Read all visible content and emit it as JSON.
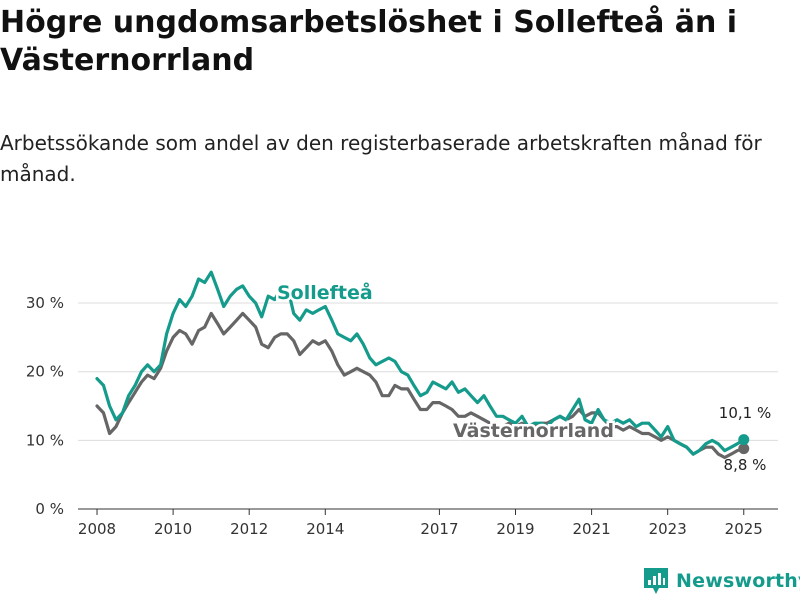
{
  "title": "Högre ungdomsarbetslöshet i Sollefteå än i Västernorrland",
  "subtitle": "Arbetssökande som andel av den registerbaserade arbetskraften månad för månad.",
  "brand": {
    "name": "Newsworthy",
    "icon": "bar-chart-logo-icon",
    "color": "#159b8c"
  },
  "chart_data": {
    "type": "line",
    "title": "Högre ungdomsarbetslöshet i Sollefteå än i Västernorrland",
    "subtitle": "Arbetssökande som andel av den registerbaserade arbetskraften månad för månad.",
    "x_axis": {
      "ticks": [
        "2008",
        "2010",
        "2012",
        "2014",
        "2017",
        "2019",
        "2021",
        "2023",
        "2025"
      ],
      "range": [
        2007.5,
        2025.9
      ]
    },
    "y_axis": {
      "ticks": [
        "0 %",
        "10 %",
        "20 %",
        "30 %"
      ],
      "range": [
        0,
        37
      ]
    },
    "grid": true,
    "series": [
      {
        "name": "Sollefteå",
        "color": "#159b8c",
        "end_label": "10,1 %",
        "points": [
          [
            2008.0,
            19.0
          ],
          [
            2008.17,
            18.0
          ],
          [
            2008.33,
            15.0
          ],
          [
            2008.5,
            13.0
          ],
          [
            2008.67,
            14.0
          ],
          [
            2008.83,
            16.5
          ],
          [
            2009.0,
            18.0
          ],
          [
            2009.17,
            20.0
          ],
          [
            2009.33,
            21.0
          ],
          [
            2009.5,
            20.0
          ],
          [
            2009.67,
            21.0
          ],
          [
            2009.83,
            25.5
          ],
          [
            2010.0,
            28.5
          ],
          [
            2010.17,
            30.5
          ],
          [
            2010.33,
            29.5
          ],
          [
            2010.5,
            31.0
          ],
          [
            2010.67,
            33.5
          ],
          [
            2010.83,
            33.0
          ],
          [
            2011.0,
            34.5
          ],
          [
            2011.17,
            32.0
          ],
          [
            2011.33,
            29.5
          ],
          [
            2011.5,
            31.0
          ],
          [
            2011.67,
            32.0
          ],
          [
            2011.83,
            32.5
          ],
          [
            2012.0,
            31.0
          ],
          [
            2012.17,
            30.0
          ],
          [
            2012.33,
            28.0
          ],
          [
            2012.5,
            31.0
          ],
          [
            2012.67,
            30.5
          ],
          [
            2012.83,
            32.0
          ],
          [
            2013.0,
            32.5
          ],
          [
            2013.17,
            28.5
          ],
          [
            2013.33,
            27.5
          ],
          [
            2013.5,
            29.0
          ],
          [
            2013.67,
            28.5
          ],
          [
            2013.83,
            29.0
          ],
          [
            2014.0,
            29.5
          ],
          [
            2014.17,
            27.5
          ],
          [
            2014.33,
            25.5
          ],
          [
            2014.5,
            25.0
          ],
          [
            2014.67,
            24.5
          ],
          [
            2014.83,
            25.5
          ],
          [
            2015.0,
            24.0
          ],
          [
            2015.17,
            22.0
          ],
          [
            2015.33,
            21.0
          ],
          [
            2015.5,
            21.5
          ],
          [
            2015.67,
            22.0
          ],
          [
            2015.83,
            21.5
          ],
          [
            2016.0,
            20.0
          ],
          [
            2016.17,
            19.5
          ],
          [
            2016.33,
            18.0
          ],
          [
            2016.5,
            16.5
          ],
          [
            2016.67,
            17.0
          ],
          [
            2016.83,
            18.5
          ],
          [
            2017.0,
            18.0
          ],
          [
            2017.17,
            17.5
          ],
          [
            2017.33,
            18.5
          ],
          [
            2017.5,
            17.0
          ],
          [
            2017.67,
            17.5
          ],
          [
            2017.83,
            16.5
          ],
          [
            2018.0,
            15.5
          ],
          [
            2018.17,
            16.5
          ],
          [
            2018.33,
            15.0
          ],
          [
            2018.5,
            13.5
          ],
          [
            2018.67,
            13.5
          ],
          [
            2018.83,
            13.0
          ],
          [
            2019.0,
            12.5
          ],
          [
            2019.17,
            13.5
          ],
          [
            2019.33,
            12.0
          ],
          [
            2019.5,
            12.5
          ],
          [
            2019.67,
            12.5
          ],
          [
            2019.83,
            12.0
          ],
          [
            2020.0,
            13.0
          ],
          [
            2020.17,
            13.5
          ],
          [
            2020.33,
            13.0
          ],
          [
            2020.5,
            14.5
          ],
          [
            2020.67,
            16.0
          ],
          [
            2020.83,
            13.0
          ],
          [
            2021.0,
            12.5
          ],
          [
            2021.17,
            14.5
          ],
          [
            2021.33,
            13.0
          ],
          [
            2021.5,
            12.5
          ],
          [
            2021.67,
            13.0
          ],
          [
            2021.83,
            12.5
          ],
          [
            2022.0,
            13.0
          ],
          [
            2022.17,
            12.0
          ],
          [
            2022.33,
            12.5
          ],
          [
            2022.5,
            12.5
          ],
          [
            2022.67,
            11.5
          ],
          [
            2022.83,
            10.5
          ],
          [
            2023.0,
            12.0
          ],
          [
            2023.17,
            10.0
          ],
          [
            2023.33,
            9.5
          ],
          [
            2023.5,
            9.0
          ],
          [
            2023.67,
            8.0
          ],
          [
            2023.83,
            8.5
          ],
          [
            2024.0,
            9.5
          ],
          [
            2024.17,
            10.0
          ],
          [
            2024.33,
            9.5
          ],
          [
            2024.5,
            8.5
          ],
          [
            2024.67,
            9.0
          ],
          [
            2024.83,
            9.5
          ],
          [
            2025.0,
            10.1
          ]
        ]
      },
      {
        "name": "Västernorrland",
        "color": "#666666",
        "end_label": "8,8 %",
        "points": [
          [
            2008.0,
            15.0
          ],
          [
            2008.17,
            14.0
          ],
          [
            2008.33,
            11.0
          ],
          [
            2008.5,
            12.0
          ],
          [
            2008.67,
            14.0
          ],
          [
            2008.83,
            15.5
          ],
          [
            2009.0,
            17.0
          ],
          [
            2009.17,
            18.5
          ],
          [
            2009.33,
            19.5
          ],
          [
            2009.5,
            19.0
          ],
          [
            2009.67,
            20.5
          ],
          [
            2009.83,
            23.0
          ],
          [
            2010.0,
            25.0
          ],
          [
            2010.17,
            26.0
          ],
          [
            2010.33,
            25.5
          ],
          [
            2010.5,
            24.0
          ],
          [
            2010.67,
            26.0
          ],
          [
            2010.83,
            26.5
          ],
          [
            2011.0,
            28.5
          ],
          [
            2011.17,
            27.0
          ],
          [
            2011.33,
            25.5
          ],
          [
            2011.5,
            26.5
          ],
          [
            2011.67,
            27.5
          ],
          [
            2011.83,
            28.5
          ],
          [
            2012.0,
            27.5
          ],
          [
            2012.17,
            26.5
          ],
          [
            2012.33,
            24.0
          ],
          [
            2012.5,
            23.5
          ],
          [
            2012.67,
            25.0
          ],
          [
            2012.83,
            25.5
          ],
          [
            2013.0,
            25.5
          ],
          [
            2013.17,
            24.5
          ],
          [
            2013.33,
            22.5
          ],
          [
            2013.5,
            23.5
          ],
          [
            2013.67,
            24.5
          ],
          [
            2013.83,
            24.0
          ],
          [
            2014.0,
            24.5
          ],
          [
            2014.17,
            23.0
          ],
          [
            2014.33,
            21.0
          ],
          [
            2014.5,
            19.5
          ],
          [
            2014.67,
            20.0
          ],
          [
            2014.83,
            20.5
          ],
          [
            2015.0,
            20.0
          ],
          [
            2015.17,
            19.5
          ],
          [
            2015.33,
            18.5
          ],
          [
            2015.5,
            16.5
          ],
          [
            2015.67,
            16.5
          ],
          [
            2015.83,
            18.0
          ],
          [
            2016.0,
            17.5
          ],
          [
            2016.17,
            17.5
          ],
          [
            2016.33,
            16.0
          ],
          [
            2016.5,
            14.5
          ],
          [
            2016.67,
            14.5
          ],
          [
            2016.83,
            15.5
          ],
          [
            2017.0,
            15.5
          ],
          [
            2017.17,
            15.0
          ],
          [
            2017.33,
            14.5
          ],
          [
            2017.5,
            13.5
          ],
          [
            2017.67,
            13.5
          ],
          [
            2017.83,
            14.0
          ],
          [
            2018.0,
            13.5
          ],
          [
            2018.17,
            13.0
          ],
          [
            2018.33,
            12.5
          ],
          [
            2018.5,
            12.0
          ],
          [
            2018.67,
            12.0
          ],
          [
            2018.83,
            12.5
          ],
          [
            2019.0,
            12.0
          ],
          [
            2019.17,
            12.5
          ],
          [
            2019.33,
            12.0
          ],
          [
            2019.5,
            12.0
          ],
          [
            2019.67,
            12.5
          ],
          [
            2019.83,
            12.5
          ],
          [
            2020.0,
            13.0
          ],
          [
            2020.17,
            13.5
          ],
          [
            2020.33,
            13.0
          ],
          [
            2020.5,
            13.5
          ],
          [
            2020.67,
            14.5
          ],
          [
            2020.83,
            13.5
          ],
          [
            2021.0,
            14.0
          ],
          [
            2021.17,
            14.0
          ],
          [
            2021.33,
            13.0
          ],
          [
            2021.5,
            12.0
          ],
          [
            2021.67,
            12.0
          ],
          [
            2021.83,
            11.5
          ],
          [
            2022.0,
            12.0
          ],
          [
            2022.17,
            11.5
          ],
          [
            2022.33,
            11.0
          ],
          [
            2022.5,
            11.0
          ],
          [
            2022.67,
            10.5
          ],
          [
            2022.83,
            10.0
          ],
          [
            2023.0,
            10.5
          ],
          [
            2023.17,
            10.0
          ],
          [
            2023.33,
            9.5
          ],
          [
            2023.5,
            9.0
          ],
          [
            2023.67,
            8.0
          ],
          [
            2023.83,
            8.5
          ],
          [
            2024.0,
            9.0
          ],
          [
            2024.17,
            9.0
          ],
          [
            2024.33,
            8.0
          ],
          [
            2024.5,
            7.5
          ],
          [
            2024.67,
            8.0
          ],
          [
            2024.83,
            8.5
          ],
          [
            2025.0,
            8.8
          ]
        ]
      }
    ]
  }
}
